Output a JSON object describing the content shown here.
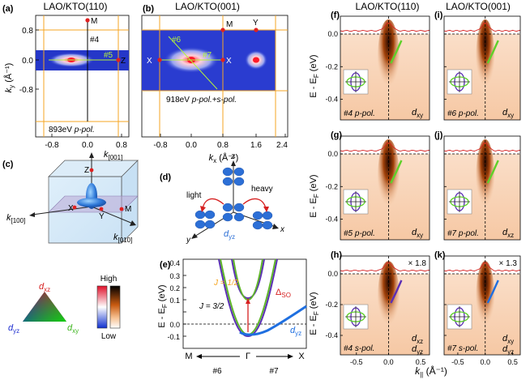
{
  "panels": {
    "a": {
      "letter": "(a)",
      "title": "LAO/KTO(110)",
      "ylabel_main": "k",
      "ylabel_sub": "y",
      "ylabel_unit": " (Å⁻¹)",
      "yticks": [
        "0.8",
        "0.0",
        "-0.8"
      ],
      "xticks": [
        "-0.8",
        "0.0",
        "0.8"
      ],
      "energy_note": "893eV ",
      "pol_note": "p-pol.",
      "point_M": "M",
      "point_Z": "Z",
      "cut4": "#4",
      "cut5": "#5"
    },
    "b": {
      "letter": "(b)",
      "title": "LAO/KTO(001)",
      "xticks": [
        "-0.8",
        "0.0",
        "0.8",
        "1.6",
        "2.4"
      ],
      "energy_note": "918eV ",
      "pol_note": "p-pol.+s-pol.",
      "point_M": "M",
      "point_Y": "Y",
      "point_X1": "X",
      "point_X2": "X",
      "cut6": "#6",
      "cut7": "#7"
    },
    "ab_xlabel_main": "k",
    "ab_xlabel_sub": "x",
    "ab_xlabel_unit": " (Å⁻¹)",
    "c": {
      "letter": "(c)",
      "k001": "k",
      "k001_sub": "[001]",
      "k100": "k",
      "k100_sub": "[100]",
      "k010": "k",
      "k010_sub": "[010]",
      "Z": "Z",
      "X": "X",
      "Y": "Y",
      "M": "M"
    },
    "d": {
      "letter": "(d)",
      "z": "z",
      "x": "x",
      "y": "y",
      "light": "light",
      "heavy": "heavy",
      "orbital_main": "d",
      "orbital_sub": "yz"
    },
    "e": {
      "letter": "(e)",
      "ylabel": "E - E",
      "ylabel_sub": "F",
      "ylabel_unit": " (eV)",
      "yticks": [
        "0.4",
        "0.3",
        "0.2",
        "0.1",
        "0.0",
        "-0.1"
      ],
      "xticks": [
        "M",
        "Γ",
        "X"
      ],
      "J12": "J = 1/2",
      "J32": "J = 3/2",
      "delta_main": "Δ",
      "delta_sub": "SO",
      "dyz_main": "d",
      "dyz_sub": "yz",
      "cut6": "#6",
      "cut7": "#7"
    },
    "legend": {
      "dxz_main": "d",
      "dxz_sub": "xz",
      "dyz_main": "d",
      "dyz_sub": "yz",
      "dxy_main": "d",
      "dxy_sub": "xy",
      "high": "High",
      "low": "Low"
    },
    "arpes_titles": {
      "left": "LAO/KTO(110)",
      "right": "LAO/KTO(001)"
    },
    "arpes_ylabel": "E - E",
    "arpes_ylabel_sub": "F",
    "arpes_ylabel_unit": " (eV)",
    "arpes_yticks": [
      "0.0",
      "-0.2",
      "-0.4"
    ],
    "arpes_xticks_left": [
      "-0.5",
      "0.0",
      "0.5"
    ],
    "arpes_xticks_right": [
      "-0.5",
      "0.0",
      "0.5"
    ],
    "arpes_xlabel": "k",
    "arpes_xlabel_sub": "||",
    "arpes_xlabel_unit": " (Å⁻¹)",
    "f": {
      "letter": "(f)",
      "cut": "#4 p-pol.",
      "orb_main": "d",
      "orb_sub": "xy"
    },
    "i": {
      "letter": "(i)",
      "cut": "#6 p-pol.",
      "orb_main": "d",
      "orb_sub": "xy"
    },
    "g": {
      "letter": "(g)",
      "cut": "#5 p-pol.",
      "orb_main": "d",
      "orb_sub": "xy"
    },
    "j": {
      "letter": "(j)",
      "cut": "#7 p-pol.",
      "orb_main": "d",
      "orb_sub": "xz"
    },
    "h": {
      "letter": "(h)",
      "cut": "#4 s-pol.",
      "mult": "× 1.8",
      "orb1_main": "d",
      "orb1_sub": "xz",
      "orb2_main": "d",
      "orb2_sub": "yz"
    },
    "k": {
      "letter": "(k)",
      "cut": "#7 s-pol.",
      "mult": "× 1.3",
      "orb1_main": "d",
      "orb1_sub": "xy",
      "orb2_main": "d",
      "orb2_sub": "yz"
    }
  },
  "colors": {
    "orange": "#f5a623",
    "blue_map": "#2233cc",
    "green": "#5fd12a",
    "purple": "#5b2fb5",
    "red": "#d62020",
    "band_blue": "#1f6fe0"
  }
}
